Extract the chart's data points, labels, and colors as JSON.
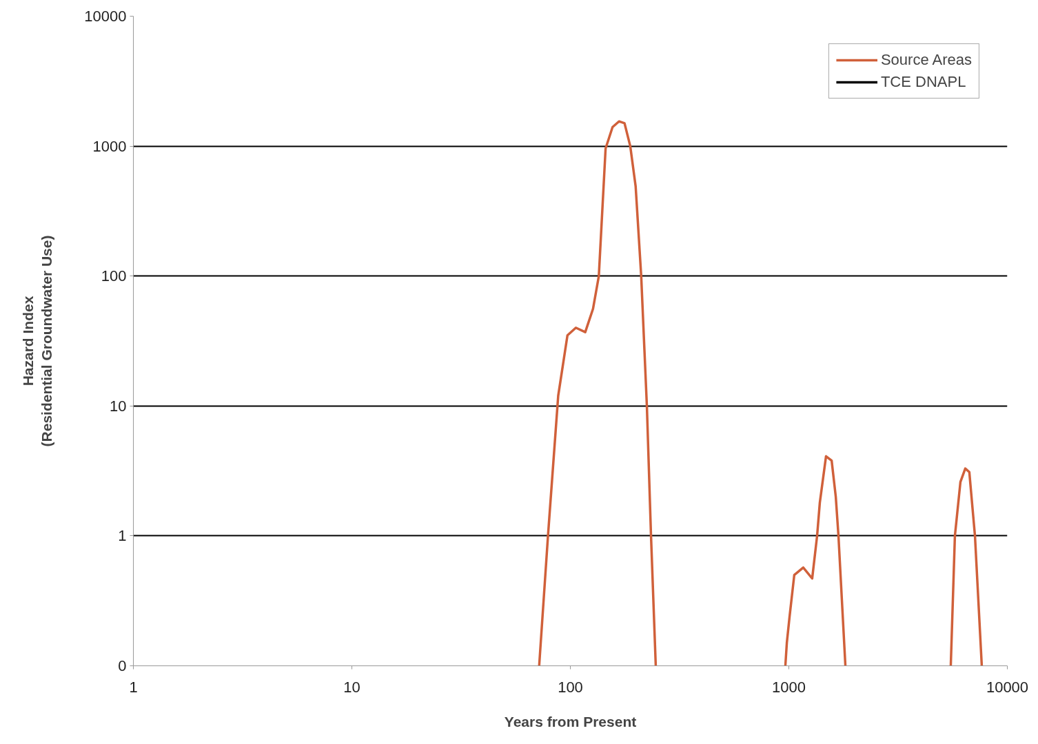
{
  "chart_data": {
    "type": "line",
    "xlabel": "Years from Present",
    "ylabel": "Hazard Index\n(Residential Groundwater Use)",
    "log": "xy",
    "xlim": [
      1,
      10000
    ],
    "xticks": [
      1,
      10,
      100,
      1000,
      10000
    ],
    "ylim": [
      0.1,
      10000
    ],
    "yticks": [
      {
        "value": 0.1,
        "label": "0"
      },
      1,
      10,
      100,
      1000,
      10000
    ],
    "grid": "y",
    "legend": "top right",
    "line_style": "solid",
    "marker": "none",
    "series": [
      {
        "name": "Source Areas",
        "color": "#d0603a",
        "x": [
          72,
          79,
          88,
          97,
          106,
          117,
          127,
          135,
          145,
          156,
          167,
          177,
          188,
          199,
          211,
          224,
          234,
          246,
          600,
          964,
          979,
          1008,
          1059,
          1164,
          1279,
          1347,
          1386,
          1480,
          1570,
          1640,
          1687,
          1815,
          3000,
          5510,
          5755,
          6100,
          6420,
          6700,
          7110,
          7640
        ],
        "values": [
          0.1,
          1,
          12,
          35,
          40,
          37,
          56,
          100,
          960,
          1400,
          1550,
          1500,
          1000,
          490,
          100,
          10,
          1,
          0.1,
          null,
          0.1,
          0.15,
          0.24,
          0.5,
          0.57,
          0.47,
          1,
          1.8,
          4.1,
          3.8,
          2,
          1,
          0.1,
          null,
          0.1,
          1,
          2.6,
          3.3,
          3.1,
          1,
          0.1
        ]
      },
      {
        "name": "TCE DNAPL",
        "color": "#000000"
      }
    ]
  }
}
